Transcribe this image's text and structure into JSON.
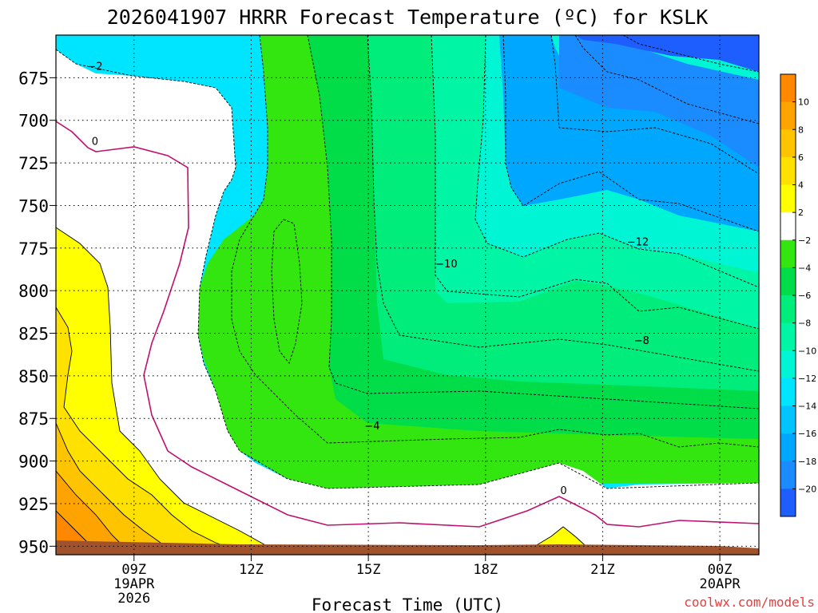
{
  "title": "2026041907 HRRR Forecast Temperature (ºC) for KSLK",
  "watermark": "coolwx.com/models",
  "chart_data": {
    "type": "contour",
    "xlabel": "Forecast Time (UTC)",
    "ylabel": "",
    "x_range": [
      7,
      25
    ],
    "y_range": [
      650,
      955
    ],
    "y_ticks": [
      675,
      700,
      725,
      750,
      775,
      800,
      825,
      850,
      875,
      900,
      925,
      950
    ],
    "x_ticks": [
      {
        "x": 9,
        "label": "09Z",
        "sub": [
          "19APR",
          "2026"
        ]
      },
      {
        "x": 12,
        "label": "12Z",
        "sub": []
      },
      {
        "x": 15,
        "label": "15Z",
        "sub": []
      },
      {
        "x": 18,
        "label": "18Z",
        "sub": []
      },
      {
        "x": 21,
        "label": "21Z",
        "sub": []
      },
      {
        "x": 24,
        "label": "00Z",
        "sub": [
          "20APR"
        ]
      }
    ],
    "grid": "dotted",
    "legend_position": "right",
    "colorbar": {
      "levels": [
        -22,
        -20,
        -18,
        -16,
        -14,
        -12,
        -10,
        -8,
        -6,
        -4,
        -2,
        2,
        4,
        6,
        8,
        10,
        12
      ],
      "colors": [
        "#1e5eff",
        "#1a8cff",
        "#00a7ff",
        "#00c4ff",
        "#00e5ff",
        "#00f5d5",
        "#00f5a4",
        "#00ec7b",
        "#00dd48",
        "#33e60f",
        "#ffffff",
        "#ffff00",
        "#ffe100",
        "#ffc400",
        "#ffa300",
        "#ff8800"
      ],
      "labels": [
        "10",
        "8",
        "6",
        "4",
        "2",
        "−2",
        "−4",
        "−6",
        "−8",
        "−10",
        "−12",
        "−14",
        "−16",
        "−18",
        "−20"
      ]
    },
    "contour_labels": [
      {
        "text": "−2",
        "x": 8.0,
        "y": 668
      },
      {
        "text": "0",
        "x": 8.0,
        "y": 712
      },
      {
        "text": "−10",
        "x": 17.0,
        "y": 784
      },
      {
        "text": "−12",
        "x": 21.9,
        "y": 771
      },
      {
        "text": "−8",
        "x": 22.0,
        "y": 829
      },
      {
        "text": "−4",
        "x": 15.1,
        "y": 879
      },
      {
        "text": "0",
        "x": 20.0,
        "y": 917
      }
    ]
  },
  "colors": {
    "freezing_line": "#c01070",
    "ground": "#a0522d",
    "watermark": "#e04040"
  }
}
